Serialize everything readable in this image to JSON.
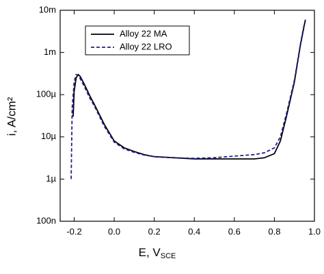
{
  "chart_data": {
    "type": "line",
    "x_label": "E, V",
    "x_label_sub": "SCE",
    "y_label": "i, A/cm²",
    "log_y": true,
    "xlim": [
      -0.27,
      1.0
    ],
    "xticks": [
      -0.2,
      {
        "value": 0,
        "label": "0.0"
      },
      0.2,
      0.4,
      0.6,
      0.8,
      {
        "value": 1,
        "label": "1.0"
      }
    ],
    "ylim": [
      1e-07,
      0.01
    ],
    "yticks": [
      {
        "value": 1e-07,
        "label": "100n"
      },
      {
        "value": 1e-06,
        "label": "1µ"
      },
      {
        "value": 1e-05,
        "label": "10µ"
      },
      {
        "value": 0.0001,
        "label": "100µ"
      },
      {
        "value": 0.001,
        "label": "1m"
      },
      {
        "value": 0.01,
        "label": "10m"
      }
    ],
    "legend": "top-left",
    "series": [
      {
        "name": "Alloy 22 MA",
        "color": "#000000",
        "dash": false,
        "x": [
          -0.205,
          -0.2,
          -0.19,
          -0.18,
          -0.17,
          -0.15,
          -0.12,
          -0.1,
          -0.05,
          0,
          0.05,
          0.1,
          0.15,
          0.2,
          0.3,
          0.4,
          0.5,
          0.6,
          0.7,
          0.75,
          0.8,
          0.83,
          0.86,
          0.9,
          0.93,
          0.955
        ],
        "values": [
          3e-05,
          0.00012,
          0.00025,
          0.0003,
          0.00027,
          0.00018,
          9e-05,
          6e-05,
          2e-05,
          8e-06,
          5.5e-06,
          4.5e-06,
          3.8e-06,
          3.4e-06,
          3.2e-06,
          3e-06,
          3e-06,
          3e-06,
          3e-06,
          3.2e-06,
          4e-06,
          8e-06,
          3e-05,
          0.0002,
          0.0015,
          0.006
        ]
      },
      {
        "name": "Alloy 22 LRO",
        "color": "#1f1f8f",
        "dash": true,
        "x": [
          -0.215,
          -0.21,
          -0.2,
          -0.19,
          -0.18,
          -0.17,
          -0.15,
          -0.12,
          -0.1,
          -0.05,
          0,
          0.05,
          0.1,
          0.15,
          0.2,
          0.3,
          0.4,
          0.5,
          0.6,
          0.7,
          0.75,
          0.8,
          0.83,
          0.86,
          0.9,
          0.93,
          0.95
        ],
        "values": [
          1e-06,
          5e-05,
          0.0002,
          0.0003,
          0.00028,
          0.00024,
          0.00016,
          8e-05,
          5.5e-05,
          1.8e-05,
          7.5e-06,
          5.2e-06,
          4.3e-06,
          3.7e-06,
          3.4e-06,
          3.2e-06,
          3.1e-06,
          3.2e-06,
          3.5e-06,
          3.8e-06,
          4.2e-06,
          5.5e-06,
          1e-05,
          3.5e-05,
          0.00022,
          0.0016,
          0.005
        ]
      }
    ]
  }
}
